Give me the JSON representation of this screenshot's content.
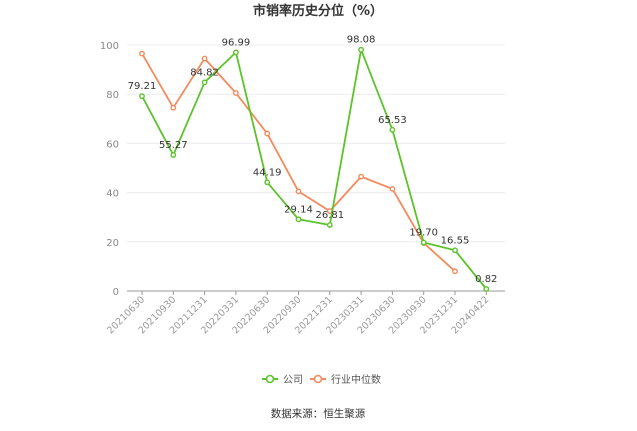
{
  "chart_data": {
    "type": "line",
    "title": "市销率历史分位（%）",
    "source": "数据来源：恒生聚源",
    "categories": [
      "20210630",
      "20210930",
      "20211231",
      "20220331",
      "20220630",
      "20220930",
      "20221231",
      "20230331",
      "20230630",
      "20230930",
      "20231231",
      "20240422"
    ],
    "ylim": [
      0,
      100
    ],
    "yticks": [
      0,
      20,
      40,
      60,
      80,
      100
    ],
    "grid": true,
    "legend_position": "bottom",
    "series": [
      {
        "name": "公司",
        "color": "#5cc32a",
        "values": [
          79.21,
          55.27,
          84.82,
          96.99,
          44.19,
          29.14,
          26.81,
          98.08,
          65.53,
          19.7,
          16.55,
          0.82
        ],
        "labels": [
          "79.21",
          "55.27",
          "84.82",
          "96.99",
          "44.19",
          "29.14",
          "26.81",
          "98.08",
          "65.53",
          "19.70",
          "16.55",
          "0.82"
        ]
      },
      {
        "name": "行业中位数",
        "color": "#f58a5b",
        "values": [
          96.5,
          74.5,
          94.5,
          80.5,
          64.0,
          40.5,
          32.5,
          46.5,
          41.5,
          19.5,
          8.0,
          null
        ]
      }
    ]
  }
}
